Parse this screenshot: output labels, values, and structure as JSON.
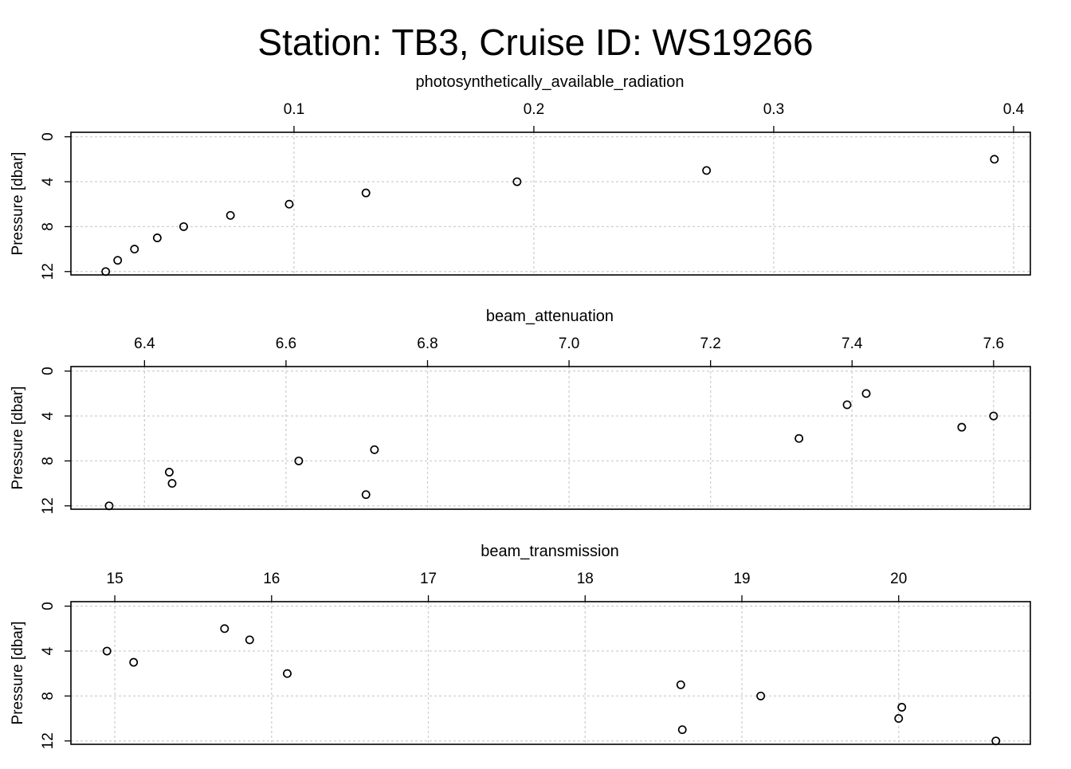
{
  "chart_data": {
    "title": "Station: TB3, Cruise ID: WS19266",
    "panels": [
      {
        "type": "scatter",
        "title": "photosynthetically_available_radiation",
        "xlabel": "photosynthetically_available_radiation",
        "ylabel": "Pressure [dbar]",
        "xlim": [
          0.007,
          0.407
        ],
        "ylim": [
          12.3,
          -0.4
        ],
        "xticks": [
          "0.1",
          "0.2",
          "0.3",
          "0.4"
        ],
        "yticks": [
          "0",
          "4",
          "8",
          "12"
        ],
        "grid": true,
        "points": [
          {
            "x": 0.392,
            "y": 2
          },
          {
            "x": 0.272,
            "y": 3
          },
          {
            "x": 0.193,
            "y": 4
          },
          {
            "x": 0.13,
            "y": 5
          },
          {
            "x": 0.098,
            "y": 6
          },
          {
            "x": 0.0735,
            "y": 7
          },
          {
            "x": 0.054,
            "y": 8
          },
          {
            "x": 0.043,
            "y": 9
          },
          {
            "x": 0.0335,
            "y": 10
          },
          {
            "x": 0.0265,
            "y": 11
          },
          {
            "x": 0.0215,
            "y": 12
          }
        ]
      },
      {
        "type": "scatter",
        "title": "beam_attenuation",
        "xlabel": "beam_attenuation",
        "ylabel": "Pressure [dbar]",
        "xlim": [
          6.296,
          7.652
        ],
        "ylim": [
          12.3,
          -0.4
        ],
        "xticks": [
          "6.4",
          "6.6",
          "6.8",
          "7.0",
          "7.2",
          "7.4",
          "7.6"
        ],
        "yticks": [
          "0",
          "4",
          "8",
          "12"
        ],
        "grid": true,
        "points": [
          {
            "x": 7.42,
            "y": 2
          },
          {
            "x": 7.393,
            "y": 3
          },
          {
            "x": 7.6,
            "y": 4
          },
          {
            "x": 7.555,
            "y": 5
          },
          {
            "x": 7.325,
            "y": 6
          },
          {
            "x": 6.725,
            "y": 7
          },
          {
            "x": 6.618,
            "y": 8
          },
          {
            "x": 6.435,
            "y": 9
          },
          {
            "x": 6.439,
            "y": 10
          },
          {
            "x": 6.713,
            "y": 11
          },
          {
            "x": 6.35,
            "y": 12
          }
        ]
      },
      {
        "type": "scatter",
        "title": "beam_transmission",
        "xlabel": "beam_transmission",
        "ylabel": "Pressure [dbar]",
        "xlim": [
          14.72,
          20.84
        ],
        "ylim": [
          12.3,
          -0.4
        ],
        "xticks": [
          "15",
          "16",
          "17",
          "18",
          "19",
          "20"
        ],
        "yticks": [
          "0",
          "4",
          "8",
          "12"
        ],
        "grid": true,
        "points": [
          {
            "x": 15.7,
            "y": 2
          },
          {
            "x": 15.86,
            "y": 3
          },
          {
            "x": 14.95,
            "y": 4
          },
          {
            "x": 15.12,
            "y": 5
          },
          {
            "x": 16.1,
            "y": 6
          },
          {
            "x": 18.61,
            "y": 7
          },
          {
            "x": 19.12,
            "y": 8
          },
          {
            "x": 20.02,
            "y": 9
          },
          {
            "x": 20.0,
            "y": 10
          },
          {
            "x": 18.62,
            "y": 11
          },
          {
            "x": 20.62,
            "y": 12
          }
        ]
      }
    ]
  }
}
